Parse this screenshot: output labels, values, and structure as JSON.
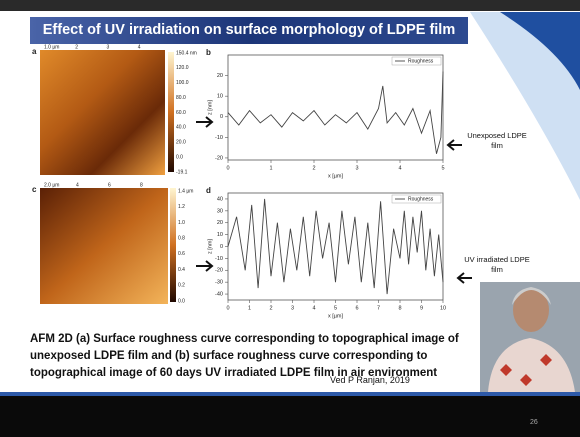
{
  "slide": {
    "title": "Effect of UV irradiation on surface morphology of LDPE film",
    "caption": "AFM 2D (a) Surface roughness curve corresponding to topographical image of unexposed LDPE film and (b) surface roughness curve corresponding to topographical image of 60 days UV irradiated LDPE film in air environment",
    "credit": "Ved P Ranjan, 2019",
    "page_number": "26",
    "annotations": [
      "Unexposed LDPE film",
      "UV irradiated LDPE film"
    ]
  },
  "afm_images": [
    {
      "label": "a",
      "top_ticks": [
        "1.0 µm",
        "2",
        "3",
        "4"
      ],
      "scale_ticks": [
        "150.4 nm",
        "120.0",
        "100.0",
        "80.0",
        "60.0",
        "40.0",
        "20.0",
        "0.0",
        "-19.1"
      ]
    },
    {
      "label": "c",
      "top_ticks": [
        "2.0 µm",
        "4",
        "6",
        "8"
      ],
      "scale_ticks": [
        "1.4 µm",
        "1.2",
        "1.0",
        "0.8",
        "0.6",
        "0.4",
        "0.2",
        "0.0"
      ]
    }
  ],
  "chart_data": [
    {
      "type": "line",
      "panel_label": "b",
      "x_label": "x [µm]",
      "y_label": "z [nm]",
      "x": [
        0,
        0.25,
        0.5,
        0.75,
        1,
        1.25,
        1.5,
        1.75,
        2,
        2.25,
        2.5,
        2.75,
        3,
        3.25,
        3.5,
        3.6,
        3.7,
        3.9,
        4.1,
        4.3,
        4.5,
        4.7,
        4.85,
        4.95,
        5
      ],
      "series": [
        {
          "name": "Roughness",
          "color": "#444444",
          "values": [
            2,
            -4,
            3,
            -3,
            1,
            -5,
            2,
            -2,
            3,
            -4,
            1,
            -3,
            2,
            -6,
            4,
            15,
            -3,
            2,
            -4,
            4,
            -8,
            3,
            -18,
            -10,
            22
          ]
        }
      ],
      "xlim": [
        0,
        5
      ],
      "ylim": [
        -21,
        30
      ],
      "xticks": [
        0,
        1,
        2,
        3,
        4,
        5
      ],
      "yticks": [
        -20,
        -10,
        0,
        10,
        20
      ]
    },
    {
      "type": "line",
      "panel_label": "d",
      "x_label": "x [µm]",
      "y_label": "z [nm]",
      "x": [
        0,
        0.4,
        0.8,
        1.1,
        1.4,
        1.7,
        2,
        2.3,
        2.6,
        2.9,
        3.2,
        3.5,
        3.8,
        4.1,
        4.4,
        4.7,
        5,
        5.3,
        5.6,
        5.9,
        6.2,
        6.5,
        6.8,
        7.1,
        7.4,
        7.7,
        8,
        8.2,
        8.4,
        8.6,
        8.8,
        9,
        9.2,
        9.4,
        9.6,
        9.8,
        10
      ],
      "series": [
        {
          "name": "Roughness",
          "color": "#444444",
          "values": [
            0,
            25,
            -20,
            35,
            -35,
            40,
            -25,
            20,
            -30,
            15,
            -20,
            25,
            -25,
            30,
            -10,
            20,
            -30,
            30,
            -15,
            25,
            -30,
            20,
            -35,
            38,
            -40,
            15,
            -10,
            30,
            -15,
            25,
            -5,
            30,
            -20,
            15,
            -25,
            10,
            -30
          ]
        }
      ],
      "xlim": [
        0,
        10
      ],
      "ylim": [
        -45,
        45
      ],
      "xticks": [
        0,
        1,
        2,
        3,
        4,
        5,
        6,
        7,
        8,
        9,
        10
      ],
      "yticks": [
        -40,
        -30,
        -20,
        -10,
        0,
        10,
        20,
        30,
        40
      ]
    }
  ]
}
